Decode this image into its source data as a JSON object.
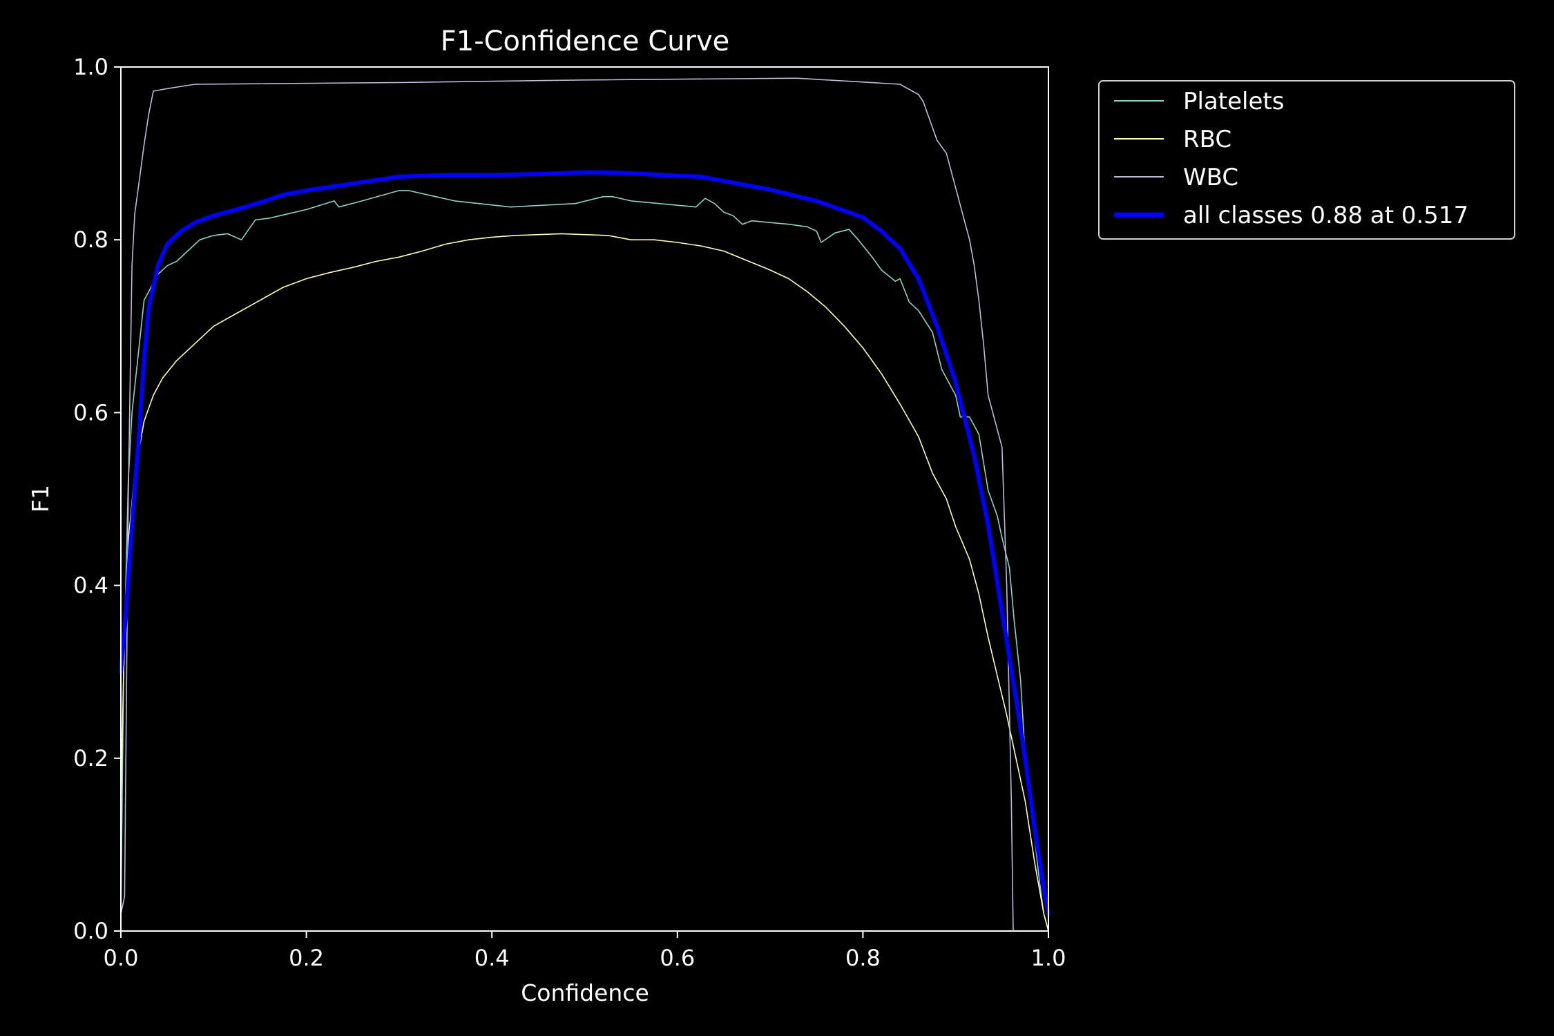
{
  "chart_data": {
    "type": "line",
    "title": "F1-Confidence Curve",
    "xlabel": "Confidence",
    "ylabel": "F1",
    "xlim": [
      0.0,
      1.0
    ],
    "ylim": [
      0.0,
      1.0
    ],
    "xticks": [
      "0.0",
      "0.2",
      "0.4",
      "0.6",
      "0.8",
      "1.0"
    ],
    "yticks": [
      "0.0",
      "0.2",
      "0.4",
      "0.6",
      "0.8",
      "1.0"
    ],
    "grid": false,
    "legend_position": "outside-top-right",
    "background": "#000000",
    "series": [
      {
        "name": "Platelets",
        "color": "#8dd3c7",
        "width": 1.6,
        "points": [
          [
            0.0,
            0.02
          ],
          [
            0.003,
            0.3
          ],
          [
            0.008,
            0.52
          ],
          [
            0.012,
            0.6
          ],
          [
            0.018,
            0.66
          ],
          [
            0.025,
            0.73
          ],
          [
            0.03,
            0.74
          ],
          [
            0.04,
            0.76
          ],
          [
            0.05,
            0.77
          ],
          [
            0.06,
            0.775
          ],
          [
            0.07,
            0.785
          ],
          [
            0.085,
            0.8
          ],
          [
            0.1,
            0.805
          ],
          [
            0.115,
            0.807
          ],
          [
            0.13,
            0.8
          ],
          [
            0.145,
            0.823
          ],
          [
            0.16,
            0.825
          ],
          [
            0.18,
            0.83
          ],
          [
            0.2,
            0.835
          ],
          [
            0.23,
            0.845
          ],
          [
            0.235,
            0.838
          ],
          [
            0.26,
            0.845
          ],
          [
            0.3,
            0.857
          ],
          [
            0.31,
            0.857
          ],
          [
            0.36,
            0.845
          ],
          [
            0.42,
            0.838
          ],
          [
            0.49,
            0.842
          ],
          [
            0.52,
            0.85
          ],
          [
            0.53,
            0.85
          ],
          [
            0.55,
            0.845
          ],
          [
            0.62,
            0.838
          ],
          [
            0.63,
            0.848
          ],
          [
            0.64,
            0.842
          ],
          [
            0.65,
            0.832
          ],
          [
            0.66,
            0.828
          ],
          [
            0.67,
            0.818
          ],
          [
            0.68,
            0.822
          ],
          [
            0.72,
            0.818
          ],
          [
            0.74,
            0.815
          ],
          [
            0.75,
            0.81
          ],
          [
            0.755,
            0.797
          ],
          [
            0.77,
            0.808
          ],
          [
            0.785,
            0.812
          ],
          [
            0.795,
            0.8
          ],
          [
            0.81,
            0.78
          ],
          [
            0.82,
            0.765
          ],
          [
            0.835,
            0.752
          ],
          [
            0.84,
            0.755
          ],
          [
            0.85,
            0.728
          ],
          [
            0.86,
            0.718
          ],
          [
            0.875,
            0.693
          ],
          [
            0.885,
            0.65
          ],
          [
            0.9,
            0.62
          ],
          [
            0.905,
            0.595
          ],
          [
            0.915,
            0.595
          ],
          [
            0.925,
            0.575
          ],
          [
            0.935,
            0.51
          ],
          [
            0.945,
            0.48
          ],
          [
            0.95,
            0.455
          ],
          [
            0.958,
            0.42
          ],
          [
            0.963,
            0.36
          ],
          [
            0.97,
            0.29
          ],
          [
            0.975,
            0.2
          ],
          [
            0.98,
            0.16
          ],
          [
            0.985,
            0.11
          ],
          [
            0.99,
            0.06
          ],
          [
            0.995,
            0.02
          ],
          [
            1.0,
            0.0
          ]
        ]
      },
      {
        "name": "RBC",
        "color": "#ffffb3",
        "width": 1.6,
        "points": [
          [
            0.0,
            0.15
          ],
          [
            0.003,
            0.3
          ],
          [
            0.008,
            0.45
          ],
          [
            0.015,
            0.53
          ],
          [
            0.025,
            0.59
          ],
          [
            0.035,
            0.62
          ],
          [
            0.045,
            0.64
          ],
          [
            0.06,
            0.66
          ],
          [
            0.08,
            0.68
          ],
          [
            0.1,
            0.7
          ],
          [
            0.125,
            0.715
          ],
          [
            0.15,
            0.73
          ],
          [
            0.175,
            0.745
          ],
          [
            0.2,
            0.755
          ],
          [
            0.225,
            0.762
          ],
          [
            0.25,
            0.768
          ],
          [
            0.275,
            0.775
          ],
          [
            0.3,
            0.78
          ],
          [
            0.325,
            0.787
          ],
          [
            0.35,
            0.795
          ],
          [
            0.375,
            0.8
          ],
          [
            0.4,
            0.803
          ],
          [
            0.425,
            0.805
          ],
          [
            0.45,
            0.806
          ],
          [
            0.475,
            0.807
          ],
          [
            0.5,
            0.806
          ],
          [
            0.525,
            0.805
          ],
          [
            0.55,
            0.8
          ],
          [
            0.575,
            0.8
          ],
          [
            0.6,
            0.797
          ],
          [
            0.625,
            0.793
          ],
          [
            0.65,
            0.787
          ],
          [
            0.675,
            0.776
          ],
          [
            0.7,
            0.765
          ],
          [
            0.72,
            0.755
          ],
          [
            0.74,
            0.74
          ],
          [
            0.76,
            0.722
          ],
          [
            0.78,
            0.7
          ],
          [
            0.8,
            0.675
          ],
          [
            0.82,
            0.645
          ],
          [
            0.84,
            0.61
          ],
          [
            0.86,
            0.572
          ],
          [
            0.875,
            0.53
          ],
          [
            0.89,
            0.5
          ],
          [
            0.9,
            0.468
          ],
          [
            0.915,
            0.43
          ],
          [
            0.925,
            0.39
          ],
          [
            0.935,
            0.34
          ],
          [
            0.945,
            0.295
          ],
          [
            0.955,
            0.25
          ],
          [
            0.965,
            0.2
          ],
          [
            0.975,
            0.15
          ],
          [
            0.985,
            0.08
          ],
          [
            0.99,
            0.05
          ],
          [
            0.995,
            0.02
          ],
          [
            1.0,
            0.0
          ]
        ]
      },
      {
        "name": "WBC",
        "color": "#bebada",
        "width": 1.6,
        "points": [
          [
            0.0,
            0.02
          ],
          [
            0.004,
            0.04
          ],
          [
            0.008,
            0.5
          ],
          [
            0.012,
            0.77
          ],
          [
            0.015,
            0.83
          ],
          [
            0.02,
            0.87
          ],
          [
            0.025,
            0.91
          ],
          [
            0.03,
            0.945
          ],
          [
            0.035,
            0.972
          ],
          [
            0.05,
            0.975
          ],
          [
            0.08,
            0.98
          ],
          [
            0.3,
            0.982
          ],
          [
            0.5,
            0.985
          ],
          [
            0.72,
            0.987
          ],
          [
            0.73,
            0.987
          ],
          [
            0.84,
            0.98
          ],
          [
            0.86,
            0.968
          ],
          [
            0.865,
            0.96
          ],
          [
            0.87,
            0.945
          ],
          [
            0.875,
            0.93
          ],
          [
            0.88,
            0.915
          ],
          [
            0.89,
            0.9
          ],
          [
            0.9,
            0.86
          ],
          [
            0.905,
            0.84
          ],
          [
            0.91,
            0.82
          ],
          [
            0.915,
            0.8
          ],
          [
            0.92,
            0.77
          ],
          [
            0.925,
            0.73
          ],
          [
            0.93,
            0.68
          ],
          [
            0.935,
            0.62
          ],
          [
            0.94,
            0.6
          ],
          [
            0.945,
            0.58
          ],
          [
            0.95,
            0.56
          ],
          [
            0.955,
            0.4
          ],
          [
            0.96,
            0.15
          ],
          [
            0.962,
            0.0
          ]
        ]
      },
      {
        "name": "all classes 0.88 at 0.517",
        "color": "#0000ff",
        "width": 6,
        "points": [
          [
            0.0,
            0.3
          ],
          [
            0.005,
            0.36
          ],
          [
            0.01,
            0.44
          ],
          [
            0.015,
            0.51
          ],
          [
            0.02,
            0.58
          ],
          [
            0.025,
            0.66
          ],
          [
            0.03,
            0.72
          ],
          [
            0.04,
            0.77
          ],
          [
            0.05,
            0.795
          ],
          [
            0.065,
            0.81
          ],
          [
            0.08,
            0.82
          ],
          [
            0.1,
            0.828
          ],
          [
            0.125,
            0.835
          ],
          [
            0.15,
            0.843
          ],
          [
            0.175,
            0.852
          ],
          [
            0.2,
            0.857
          ],
          [
            0.25,
            0.865
          ],
          [
            0.3,
            0.873
          ],
          [
            0.35,
            0.875
          ],
          [
            0.4,
            0.875
          ],
          [
            0.45,
            0.876
          ],
          [
            0.5,
            0.878
          ],
          [
            0.517,
            0.878
          ],
          [
            0.55,
            0.877
          ],
          [
            0.6,
            0.874
          ],
          [
            0.625,
            0.873
          ],
          [
            0.65,
            0.868
          ],
          [
            0.7,
            0.858
          ],
          [
            0.75,
            0.845
          ],
          [
            0.8,
            0.826
          ],
          [
            0.82,
            0.81
          ],
          [
            0.84,
            0.79
          ],
          [
            0.86,
            0.755
          ],
          [
            0.88,
            0.7
          ],
          [
            0.9,
            0.635
          ],
          [
            0.92,
            0.55
          ],
          [
            0.935,
            0.47
          ],
          [
            0.95,
            0.37
          ],
          [
            0.965,
            0.27
          ],
          [
            0.975,
            0.2
          ],
          [
            0.985,
            0.12
          ],
          [
            0.995,
            0.05
          ],
          [
            1.0,
            0.02
          ]
        ]
      }
    ]
  }
}
